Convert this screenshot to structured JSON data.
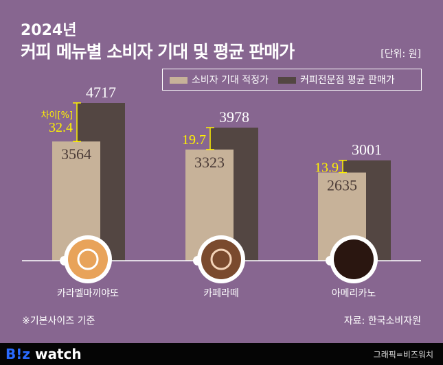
{
  "header": {
    "year": "2024년",
    "title": "커피 메뉴별 소비자 기대 및 평균 판매가",
    "unit": "[단위: 원]"
  },
  "chart_data": {
    "type": "bar",
    "categories": [
      "카라멜마끼야또",
      "카페라떼",
      "아메리카노"
    ],
    "series": [
      {
        "name": "소비자 기대 적정가",
        "values": [
          3564,
          3323,
          2635
        ],
        "color": "#c7b299"
      },
      {
        "name": "커피전문점 평균 판매가",
        "values": [
          4717,
          3978,
          3001
        ],
        "color": "#534642"
      }
    ],
    "difference": {
      "label": "차이[%]",
      "values": [
        32.4,
        19.7,
        13.9
      ],
      "color": "#fff200"
    },
    "legend": "top-right"
  },
  "footer": {
    "note": "※기본사이즈 기준",
    "source": "자료: 한국소비자원",
    "brand_b": "B!z",
    "brand_w": " watch",
    "credit": "그래픽=비즈워치"
  }
}
